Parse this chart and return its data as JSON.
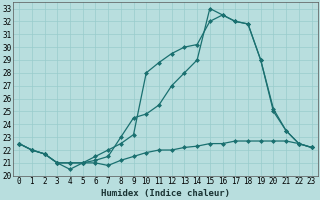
{
  "xlabel": "Humidex (Indice chaleur)",
  "bg_color": "#b8dede",
  "grid_color": "#99cccc",
  "line_color": "#1a7070",
  "xlim": [
    -0.5,
    23.5
  ],
  "ylim": [
    20,
    33.5
  ],
  "xticks": [
    0,
    1,
    2,
    3,
    4,
    5,
    6,
    7,
    8,
    9,
    10,
    11,
    12,
    13,
    14,
    15,
    16,
    17,
    18,
    19,
    20,
    21,
    22,
    23
  ],
  "yticks": [
    20,
    21,
    22,
    23,
    24,
    25,
    26,
    27,
    28,
    29,
    30,
    31,
    32,
    33
  ],
  "line1_x": [
    0,
    1,
    2,
    3,
    4,
    5,
    6,
    7,
    8,
    9,
    10,
    11,
    12,
    13,
    14,
    15,
    16,
    17,
    18,
    19,
    20,
    21,
    22,
    23
  ],
  "line1_y": [
    22.5,
    22.0,
    21.7,
    21.0,
    20.5,
    21.0,
    21.0,
    20.8,
    21.2,
    21.5,
    21.8,
    22.0,
    22.0,
    22.2,
    22.3,
    22.5,
    22.5,
    22.7,
    22.7,
    22.7,
    22.7,
    22.7,
    22.5,
    22.2
  ],
  "line2_x": [
    0,
    1,
    2,
    3,
    4,
    5,
    6,
    7,
    8,
    9,
    10,
    11,
    12,
    13,
    14,
    15,
    16,
    17,
    18,
    19,
    20,
    21,
    22,
    23
  ],
  "line2_y": [
    22.5,
    22.0,
    21.7,
    21.0,
    21.0,
    21.0,
    21.2,
    21.5,
    23.0,
    24.5,
    24.8,
    25.5,
    27.0,
    28.0,
    29.0,
    33.0,
    32.5,
    32.0,
    31.8,
    29.0,
    25.2,
    23.5,
    22.5,
    22.2
  ],
  "line3_x": [
    0,
    1,
    2,
    3,
    4,
    5,
    6,
    7,
    8,
    9,
    10,
    11,
    12,
    13,
    14,
    15,
    16,
    17,
    18,
    19,
    20,
    21,
    22,
    23
  ],
  "line3_y": [
    22.5,
    22.0,
    21.7,
    21.0,
    21.0,
    21.0,
    21.5,
    22.0,
    22.5,
    23.2,
    28.0,
    28.8,
    29.5,
    30.0,
    30.2,
    32.0,
    32.5,
    32.0,
    31.8,
    29.0,
    25.0,
    23.5,
    22.5,
    22.2
  ],
  "marker": "D",
  "marker_size": 2.0,
  "line_width": 0.9,
  "tick_fontsize": 5.5,
  "label_fontsize": 6.5
}
